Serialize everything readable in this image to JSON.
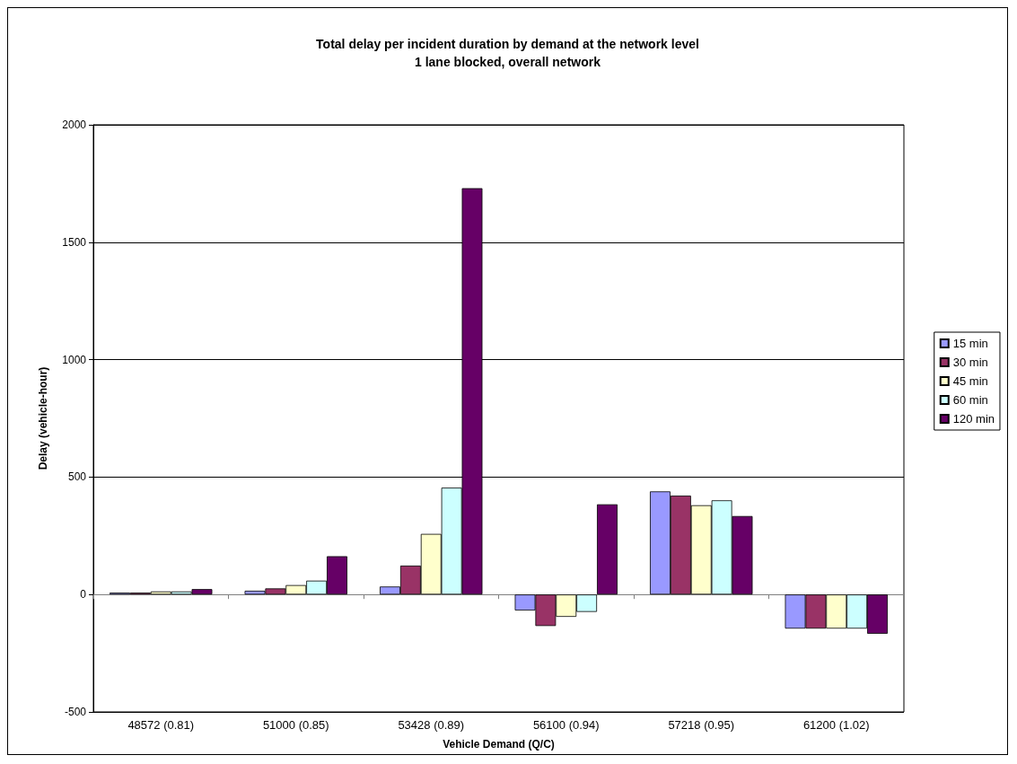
{
  "chart_data": {
    "type": "bar",
    "title": "Total delay per incident duration by demand at the network level",
    "subtitle": "1 lane blocked, overall network",
    "xlabel": "Vehicle Demand (Q/C)",
    "ylabel": "Delay (vehicle-hour)",
    "categories": [
      "48572 (0.81)",
      "51000 (0.85)",
      "53428 (0.89)",
      "56100 (0.94)",
      "57218 (0.95)",
      "61200 (1.02)"
    ],
    "series": [
      {
        "name": "15 min",
        "color": "#9999ff",
        "values": [
          8,
          16,
          34,
          -68,
          439,
          -145
        ]
      },
      {
        "name": "30 min",
        "color": "#993366",
        "values": [
          8,
          26,
          123,
          -134,
          421,
          -145
        ]
      },
      {
        "name": "45 min",
        "color": "#ffffcc",
        "values": [
          13,
          40,
          258,
          -95,
          380,
          -145
        ]
      },
      {
        "name": "60 min",
        "color": "#ccffff",
        "values": [
          13,
          59,
          455,
          -74,
          401,
          -145
        ]
      },
      {
        "name": "120 min",
        "color": "#660066",
        "values": [
          23,
          163,
          1730,
          384,
          334,
          -167
        ]
      }
    ],
    "ylim": [
      -500,
      2000
    ],
    "yticks": [
      -500,
      0,
      500,
      1000,
      1500,
      2000
    ],
    "grid": "y",
    "legend": "right"
  }
}
